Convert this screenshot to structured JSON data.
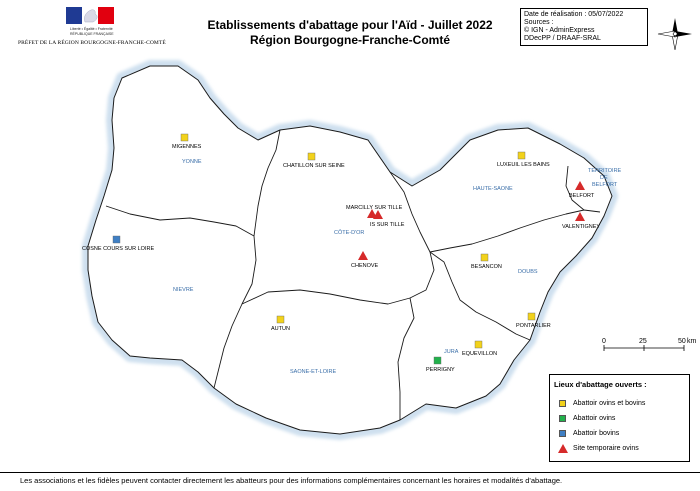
{
  "header": {
    "logo_line1": "Liberté • Égalité • Fraternité",
    "logo_line2": "RÉPUBLIQUE FRANÇAISE",
    "prefet": "PRÉFET DE LA RÉGION BOURGOGNE-FRANCHE-COMTÉ",
    "title_line1": "Etablissements d'abattage pour l'Aïd - Juillet 2022",
    "title_line2": "Région Bourgogne-Franche-Comté"
  },
  "info": {
    "date": "Date de réalisation : 05/07/2022",
    "sources_label": "Sources :",
    "source1": "© IGN - AdminExpress",
    "source2": "DDecPP / DRAAF-SRAL"
  },
  "departments": [
    {
      "name": "YONNE"
    },
    {
      "name": "NIEVRE"
    },
    {
      "name": "CÔTE-D'OR"
    },
    {
      "name": "SAONE-ET-LOIRE"
    },
    {
      "name": "HAUTE-SAONE"
    },
    {
      "name": "DOUBS"
    },
    {
      "name": "JURA"
    },
    {
      "name": "TERRITOIRE"
    },
    {
      "name": "DE"
    },
    {
      "name": "BELFORT"
    }
  ],
  "sites": [
    {
      "name": "MIGENNES",
      "type": "ovins-bovins"
    },
    {
      "name": "CHATILLON SUR SEINE",
      "type": "ovins-bovins"
    },
    {
      "name": "LUXEUIL LES BAINS",
      "type": "ovins-bovins"
    },
    {
      "name": "BELFORT",
      "type": "temporaire"
    },
    {
      "name": "VALENTIGNEY",
      "type": "temporaire"
    },
    {
      "name": "MARCILLY SUR TILLE",
      "type": "temporaire"
    },
    {
      "name": "IS SUR TILLE",
      "type": "temporaire"
    },
    {
      "name": "COSNE COURS SUR LOIRE",
      "type": "bovins"
    },
    {
      "name": "CHENOVE",
      "type": "temporaire"
    },
    {
      "name": "BESANCON",
      "type": "ovins-bovins"
    },
    {
      "name": "AUTUN",
      "type": "ovins-bovins"
    },
    {
      "name": "PONTARLIER",
      "type": "ovins-bovins"
    },
    {
      "name": "EQUEVILLON",
      "type": "ovins-bovins"
    },
    {
      "name": "PERRIGNY",
      "type": "ovins"
    }
  ],
  "scale": {
    "t0": "0",
    "t1": "25",
    "t2": "50",
    "unit": "km"
  },
  "legend": {
    "title": "Lieux d'abattage ouverts :",
    "items": [
      {
        "label": "Abattoir ovins et bovins",
        "color": "#f2d21b"
      },
      {
        "label": "Abattoir ovins",
        "color": "#22b14c"
      },
      {
        "label": "Abattoir bovins",
        "color": "#3f7fc4"
      },
      {
        "label": "Site temporaire ovins",
        "color": "#d62a2a"
      }
    ]
  },
  "colors": {
    "halo": "#cfe0ef",
    "border": "#1a1a1a",
    "dept_label": "#3a6ea8"
  },
  "footer": "Les associations et les fidèles peuvent contacter directement les abatteurs pour des informations complémentaires concernant les horaires et modalités d'abattage."
}
